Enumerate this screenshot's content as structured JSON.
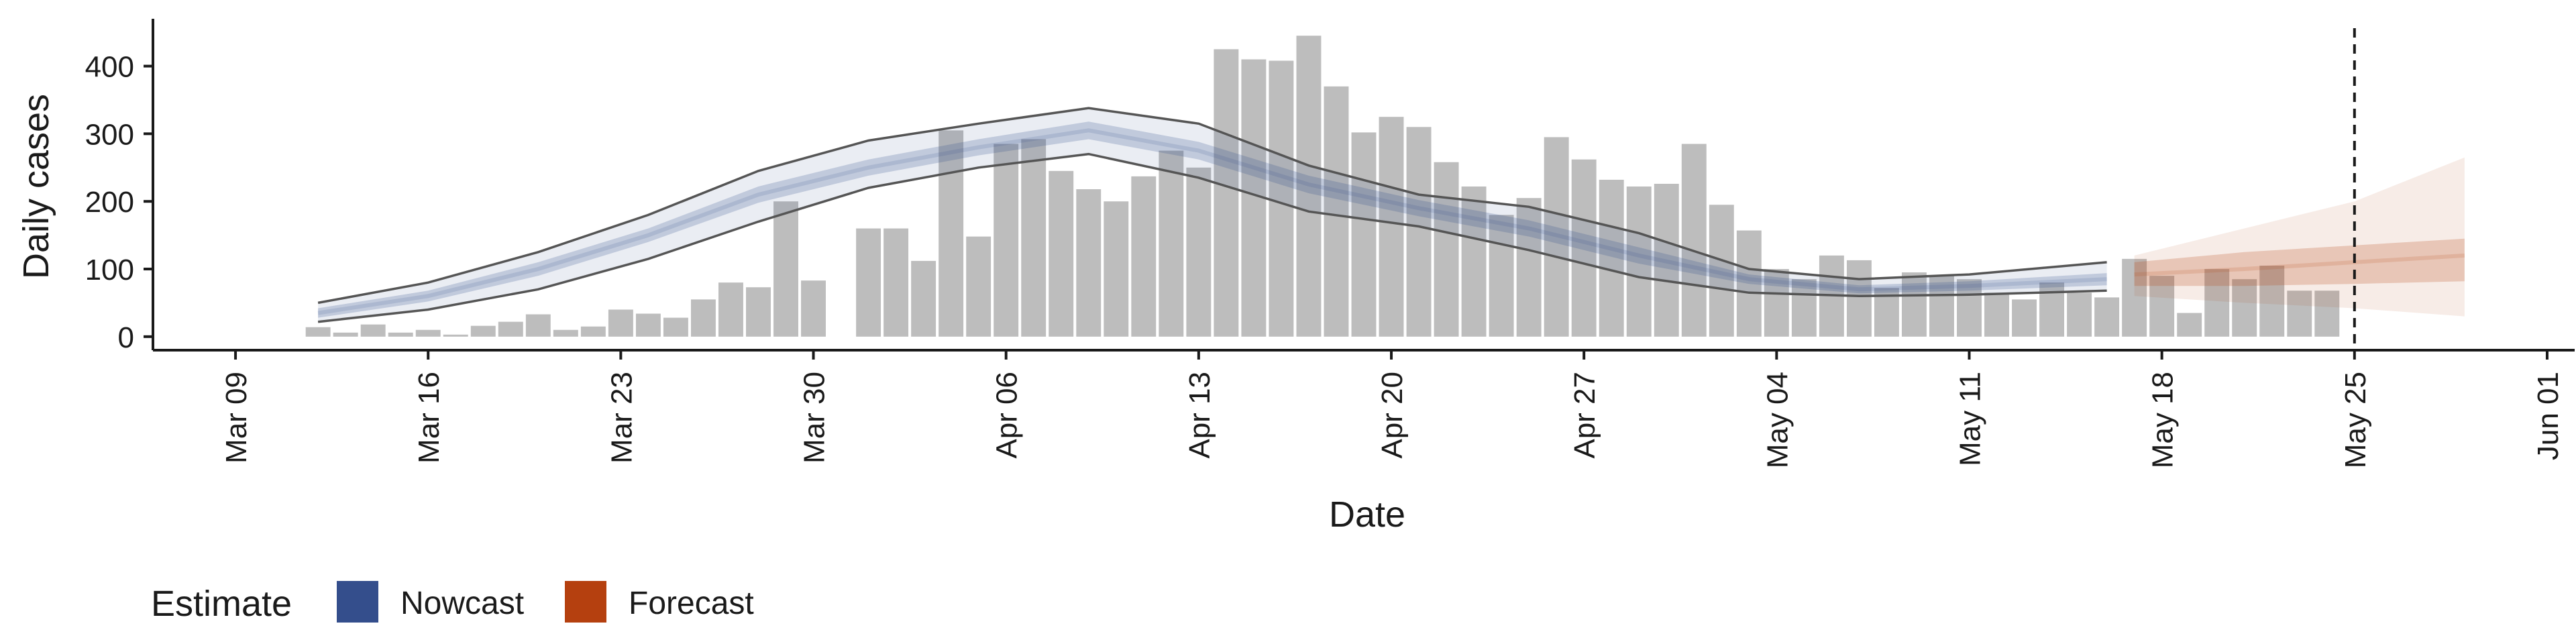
{
  "chart_data": {
    "type": "bar",
    "xlabel": "Date",
    "ylabel": "Daily cases",
    "x_range": [
      "2020-03-06",
      "2020-06-02"
    ],
    "ylim": [
      -20,
      470
    ],
    "grid": false,
    "x_ticks": [
      {
        "date": "2020-03-09",
        "label": "Mar 09"
      },
      {
        "date": "2020-03-16",
        "label": "Mar 16"
      },
      {
        "date": "2020-03-23",
        "label": "Mar 23"
      },
      {
        "date": "2020-03-30",
        "label": "Mar 30"
      },
      {
        "date": "2020-04-06",
        "label": "Apr 06"
      },
      {
        "date": "2020-04-13",
        "label": "Apr 13"
      },
      {
        "date": "2020-04-20",
        "label": "Apr 20"
      },
      {
        "date": "2020-04-27",
        "label": "Apr 27"
      },
      {
        "date": "2020-05-04",
        "label": "May 04"
      },
      {
        "date": "2020-05-11",
        "label": "May 11"
      },
      {
        "date": "2020-05-18",
        "label": "May 18"
      },
      {
        "date": "2020-05-25",
        "label": "May 25"
      },
      {
        "date": "2020-06-01",
        "label": "Jun 01"
      }
    ],
    "y_ticks": [
      {
        "value": 0,
        "label": "0"
      },
      {
        "value": 100,
        "label": "100"
      },
      {
        "value": 200,
        "label": "200"
      },
      {
        "value": 300,
        "label": "300"
      },
      {
        "value": 400,
        "label": "400"
      }
    ],
    "bars": {
      "start_date": "2020-03-12",
      "values": [
        14,
        6,
        18,
        6,
        10,
        3,
        16,
        22,
        33,
        10,
        15,
        40,
        34,
        28,
        55,
        80,
        73,
        200,
        83,
        null,
        160,
        160,
        112,
        305,
        148,
        285,
        292,
        245,
        218,
        200,
        237,
        275,
        250,
        425,
        410,
        408,
        445,
        370,
        302,
        325,
        310,
        258,
        222,
        180,
        205,
        295,
        262,
        232,
        222,
        226,
        285,
        195,
        157,
        100,
        85,
        120,
        113,
        72,
        95,
        90,
        85,
        65,
        55,
        80,
        65,
        58,
        115,
        90,
        35,
        100,
        85,
        105,
        68,
        68
      ],
      "color": "#bdbdbd"
    },
    "estimate_series": [
      {
        "name": "Nowcast",
        "color": "#344E8C",
        "dates": [
          "2020-03-12",
          "2020-03-16",
          "2020-03-20",
          "2020-03-24",
          "2020-03-28",
          "2020-04-01",
          "2020-04-05",
          "2020-04-09",
          "2020-04-13",
          "2020-04-17",
          "2020-04-21",
          "2020-04-25",
          "2020-04-29",
          "2020-05-03",
          "2020-05-07",
          "2020-05-11",
          "2020-05-16"
        ],
        "median": [
          35,
          60,
          100,
          150,
          210,
          250,
          280,
          305,
          275,
          225,
          190,
          160,
          120,
          85,
          70,
          75,
          85
        ],
        "inner_band": {
          "lower": [
            28,
            52,
            90,
            140,
            198,
            238,
            268,
            292,
            262,
            212,
            178,
            148,
            108,
            78,
            64,
            68,
            76
          ],
          "upper": [
            42,
            68,
            110,
            160,
            222,
            262,
            292,
            318,
            288,
            238,
            202,
            172,
            132,
            92,
            76,
            82,
            94
          ]
        },
        "outer_band": {
          "lower": [
            22,
            40,
            70,
            115,
            170,
            220,
            250,
            270,
            235,
            185,
            163,
            128,
            88,
            65,
            60,
            62,
            68
          ],
          "upper": [
            50,
            80,
            125,
            180,
            245,
            290,
            315,
            338,
            315,
            253,
            210,
            192,
            153,
            100,
            85,
            92,
            110
          ]
        }
      },
      {
        "name": "Forecast",
        "color": "#B5400F",
        "dates": [
          "2020-05-17",
          "2020-05-21",
          "2020-05-25",
          "2020-05-29"
        ],
        "median": [
          92,
          100,
          110,
          120
        ],
        "inner_band": {
          "lower": [
            75,
            75,
            78,
            82
          ],
          "upper": [
            110,
            125,
            135,
            145
          ]
        },
        "outer_band": {
          "lower": [
            60,
            50,
            42,
            30
          ],
          "upper": [
            120,
            160,
            200,
            265
          ]
        }
      }
    ],
    "reference_line": {
      "date": "2020-05-25",
      "style": "dashed"
    },
    "legend": {
      "title": "Estimate",
      "position": "bottom-left",
      "entries": [
        {
          "label": "Nowcast",
          "color": "#344E8C"
        },
        {
          "label": "Forecast",
          "color": "#B5400F"
        }
      ]
    }
  }
}
